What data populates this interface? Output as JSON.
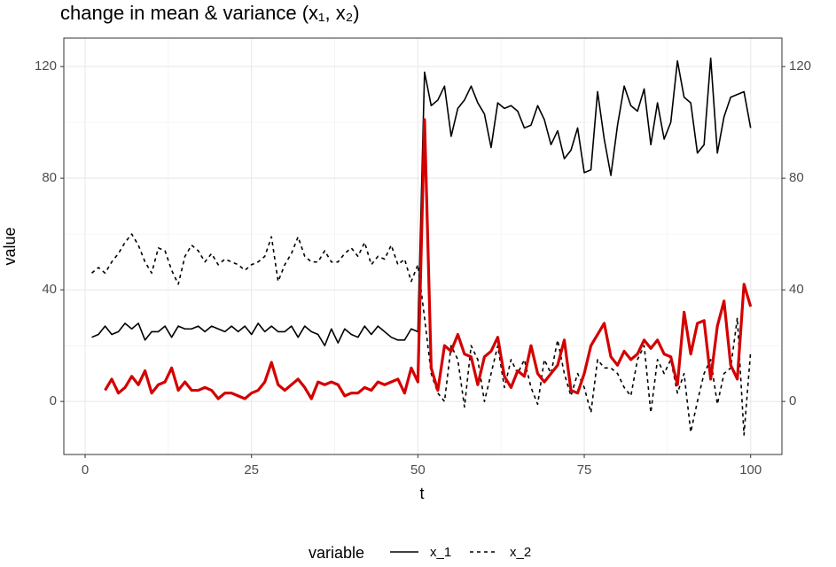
{
  "chart_data": {
    "type": "line",
    "title": "change in mean & variance (x₁, x₂)",
    "x_label": "t",
    "y_label": "value",
    "legend_title": "variable",
    "x": [
      1,
      2,
      3,
      4,
      5,
      6,
      7,
      8,
      9,
      10,
      11,
      12,
      13,
      14,
      15,
      16,
      17,
      18,
      19,
      20,
      21,
      22,
      23,
      24,
      25,
      26,
      27,
      28,
      29,
      30,
      31,
      32,
      33,
      34,
      35,
      36,
      37,
      38,
      39,
      40,
      41,
      42,
      43,
      44,
      45,
      46,
      47,
      48,
      49,
      50,
      51,
      52,
      53,
      54,
      55,
      56,
      57,
      58,
      59,
      60,
      61,
      62,
      63,
      64,
      65,
      66,
      67,
      68,
      69,
      70,
      71,
      72,
      73,
      74,
      75,
      76,
      77,
      78,
      79,
      80,
      81,
      82,
      83,
      84,
      85,
      86,
      87,
      88,
      89,
      90,
      91,
      92,
      93,
      94,
      95,
      96,
      97,
      98,
      99,
      100
    ],
    "series": [
      {
        "name": "x_1",
        "color": "#000000",
        "dash": "solid",
        "width": 1.6,
        "values": [
          23,
          24,
          27,
          24,
          25,
          28,
          26,
          28,
          22,
          25,
          25,
          27,
          23,
          27,
          26,
          26,
          27,
          25,
          27,
          26,
          25,
          27,
          25,
          27,
          24,
          28,
          25,
          27,
          25,
          25,
          27,
          23,
          27,
          25,
          24,
          20,
          26,
          21,
          26,
          24,
          23,
          27,
          24,
          27,
          25,
          23,
          22,
          22,
          26,
          25,
          118,
          106,
          108,
          113,
          95,
          105,
          108,
          113,
          107,
          103,
          91,
          107,
          105,
          106,
          104,
          98,
          99,
          106,
          101,
          92,
          97,
          87,
          90,
          98,
          82,
          83,
          111,
          94,
          81,
          99,
          113,
          106,
          104,
          112,
          92,
          107,
          94,
          100,
          122,
          109,
          107,
          89,
          92,
          123,
          89,
          102,
          109,
          110,
          111,
          98
        ]
      },
      {
        "name": "x_2",
        "color": "#000000",
        "dash": "dashed",
        "width": 1.6,
        "values": [
          46,
          48,
          46,
          50,
          53,
          57,
          60,
          56,
          50,
          46,
          55,
          54,
          47,
          42,
          52,
          56,
          54,
          50,
          53,
          49,
          51,
          50,
          49,
          47,
          49,
          50,
          52,
          59,
          43,
          49,
          53,
          59,
          52,
          50,
          50,
          54,
          50,
          50,
          53,
          55,
          52,
          57,
          49,
          52,
          51,
          56,
          49,
          51,
          43,
          49,
          30,
          10,
          3,
          0,
          20,
          15,
          -2,
          20,
          15,
          0,
          10,
          20,
          5,
          15,
          10,
          15,
          5,
          -1,
          15,
          10,
          22,
          10,
          2,
          10,
          5,
          -4,
          15,
          12,
          12,
          10,
          5,
          2,
          15,
          20,
          -4,
          15,
          10,
          15,
          3,
          10,
          -11,
          0,
          10,
          15,
          -1,
          10,
          12,
          30,
          -12,
          18
        ]
      },
      {
        "color": "#d40000",
        "dash": "solid",
        "width": 3.2,
        "axis": "y2",
        "values": [
          null,
          null,
          4,
          8,
          3,
          5,
          9,
          6,
          11,
          3,
          6,
          7,
          12,
          4,
          7,
          4,
          4,
          5,
          4,
          1,
          3,
          3,
          2,
          1,
          3,
          4,
          7,
          14,
          6,
          4,
          6,
          8,
          5,
          1,
          7,
          6,
          7,
          6,
          2,
          3,
          3,
          5,
          4,
          7,
          6,
          7,
          8,
          3,
          12,
          7,
          101,
          12,
          4,
          20,
          18,
          24,
          17,
          16,
          6,
          16,
          18,
          23,
          9,
          5,
          11,
          9,
          20,
          10,
          7,
          10,
          13,
          22,
          4,
          3,
          10,
          20,
          24,
          28,
          16,
          13,
          18,
          15,
          17,
          22,
          19,
          22,
          17,
          16,
          6,
          32,
          17,
          28,
          29,
          8,
          27,
          36,
          13,
          8,
          42,
          34
        ]
      }
    ],
    "xlim": [
      -3.2,
      104.7
    ],
    "xticks": [
      0,
      25,
      50,
      75,
      100
    ],
    "ylim": [
      -19,
      130.2
    ],
    "yticks": [
      0,
      40,
      80,
      120
    ],
    "y2lim": [
      -19,
      130.2
    ],
    "y2ticks": [
      0,
      40,
      80,
      120
    ],
    "grid": true
  }
}
